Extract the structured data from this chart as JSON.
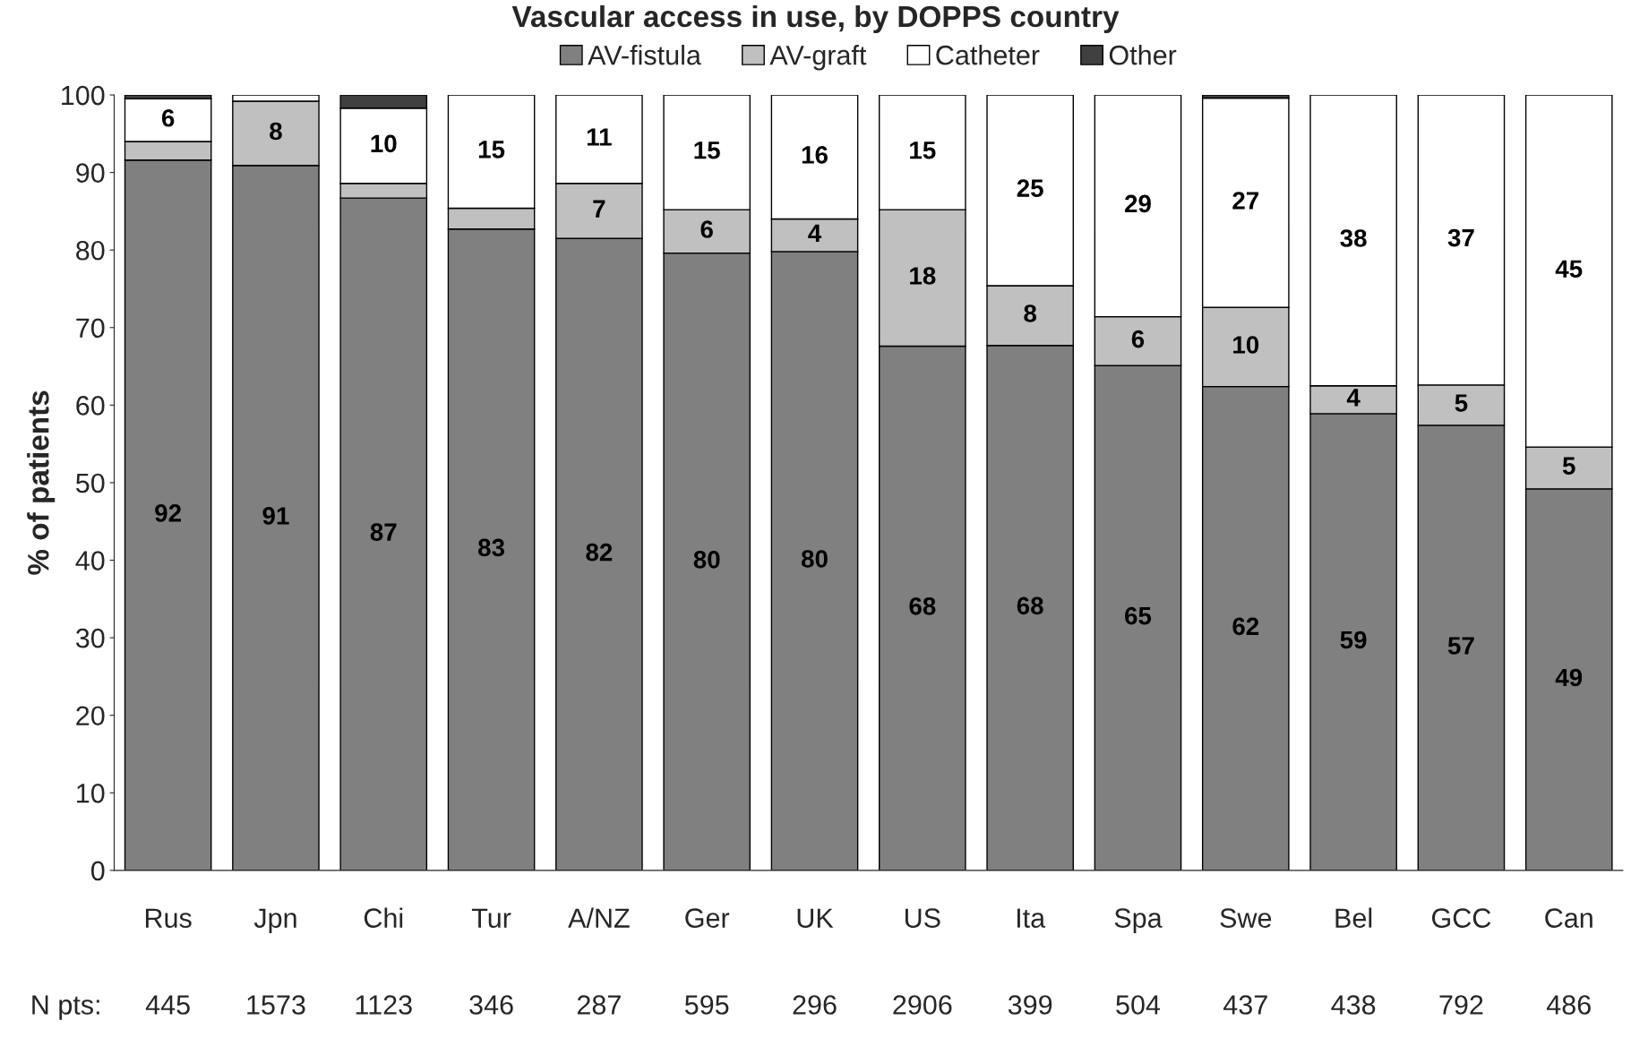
{
  "chart_data": {
    "type": "bar",
    "title": "Vascular access in use, by DOPPS country",
    "ylabel": "% of patients",
    "categories": [
      "Rus",
      "Jpn",
      "Chi",
      "Tur",
      "A/NZ",
      "Ger",
      "UK",
      "US",
      "Ita",
      "Spa",
      "Swe",
      "Bel",
      "GCC",
      "Can"
    ],
    "stacked": true,
    "legend": "top",
    "grid": false,
    "ylim": [
      0,
      100
    ],
    "yticks": [
      0,
      10,
      20,
      30,
      40,
      50,
      60,
      70,
      80,
      90,
      100
    ],
    "series": [
      {
        "name": "AV-fistula",
        "color": "#808080",
        "values": [
          91.6,
          90.9,
          86.7,
          82.7,
          81.5,
          79.6,
          79.8,
          67.6,
          67.7,
          65.1,
          62.4,
          58.9,
          57.4,
          49.2
        ],
        "value_labels": [
          "92",
          "91",
          "87",
          "83",
          "82",
          "80",
          "80",
          "68",
          "68",
          "65",
          "62",
          "59",
          "57",
          "49"
        ]
      },
      {
        "name": "AV-graft",
        "color": "#c0c0c0",
        "values": [
          2.4,
          8.3,
          1.9,
          2.7,
          7.1,
          5.6,
          4.2,
          17.6,
          7.7,
          6.3,
          10.2,
          3.6,
          5.2,
          5.4
        ],
        "value_labels": [
          null,
          "8",
          null,
          null,
          "7",
          "6",
          "4",
          "18",
          "8",
          "6",
          "10",
          "4",
          "5",
          "5"
        ]
      },
      {
        "name": "Catheter",
        "color": "#ffffff",
        "values": [
          5.5,
          0.8,
          9.7,
          14.6,
          11.4,
          14.8,
          16.0,
          14.8,
          24.6,
          28.6,
          27.0,
          37.5,
          37.4,
          45.4
        ],
        "value_labels": [
          "6",
          null,
          "10",
          "15",
          "11",
          "15",
          "16",
          "15",
          "25",
          "29",
          "27",
          "38",
          "37",
          "45"
        ]
      },
      {
        "name": "Other",
        "color": "#404040",
        "values": [
          0.5,
          null,
          1.7,
          null,
          null,
          null,
          null,
          null,
          null,
          null,
          0.4,
          null,
          null,
          null
        ],
        "value_labels": [
          null,
          null,
          null,
          null,
          null,
          null,
          null,
          null,
          null,
          null,
          null,
          null,
          null,
          null
        ]
      }
    ],
    "annotations": [
      "N pts:",
      "445",
      "1573",
      "1123",
      "346",
      "287",
      "595",
      "296",
      "2906",
      "399",
      "504",
      "437",
      "438",
      "792",
      "486"
    ]
  }
}
